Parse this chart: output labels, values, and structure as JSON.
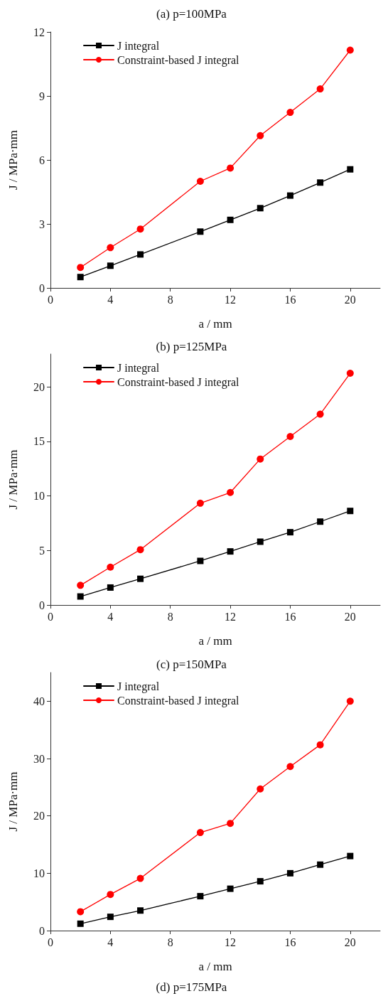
{
  "chart_data": [
    {
      "type": "line",
      "title": "(a) p=100MPa",
      "xlabel": "a / mm",
      "ylabel": "J / MPa·mm",
      "x": [
        2,
        4,
        6,
        10,
        12,
        14,
        16,
        18,
        20
      ],
      "xlim": [
        0,
        22
      ],
      "xticks": [
        0,
        4,
        8,
        12,
        16,
        20
      ],
      "ylim": [
        0,
        12
      ],
      "yticks": [
        0,
        3,
        6,
        9,
        12
      ],
      "grid": false,
      "legend": "top left",
      "series": [
        {
          "name": "J integral",
          "color": "#000000",
          "marker": "square",
          "values": [
            0.51,
            1.04,
            1.57,
            2.64,
            3.19,
            3.74,
            4.33,
            4.94,
            5.56
          ]
        },
        {
          "name": "Constraint-based J integral",
          "color": "#ff0000",
          "marker": "circle",
          "values": [
            0.96,
            1.89,
            2.76,
            5.0,
            5.62,
            7.14,
            8.23,
            9.33,
            11.15
          ]
        }
      ]
    },
    {
      "type": "line",
      "title": "(b) p=125MPa",
      "xlabel": "a / mm",
      "ylabel": "J / MPa·mm",
      "x": [
        2,
        4,
        6,
        10,
        12,
        14,
        16,
        18,
        20
      ],
      "xlim": [
        0,
        22
      ],
      "xticks": [
        0,
        4,
        8,
        12,
        16,
        20
      ],
      "ylim": [
        0,
        23
      ],
      "yticks": [
        0,
        5,
        10,
        15,
        20
      ],
      "grid": false,
      "legend": "top left",
      "series": [
        {
          "name": "J integral",
          "color": "#000000",
          "marker": "square",
          "values": [
            0.78,
            1.6,
            2.4,
            4.04,
            4.91,
            5.8,
            6.67,
            7.64,
            8.62
          ]
        },
        {
          "name": "Constraint-based J integral",
          "color": "#ff0000",
          "marker": "circle",
          "values": [
            1.8,
            3.47,
            5.07,
            9.33,
            10.31,
            13.38,
            15.44,
            17.49,
            21.24
          ]
        }
      ]
    },
    {
      "type": "line",
      "title": "(c) p=150MPa",
      "xlabel": "a / mm",
      "ylabel": "J / MPa·mm",
      "x": [
        2,
        4,
        6,
        10,
        12,
        14,
        16,
        18,
        20
      ],
      "xlim": [
        0,
        22
      ],
      "xticks": [
        0,
        4,
        8,
        12,
        16,
        20
      ],
      "ylim": [
        0,
        45
      ],
      "yticks": [
        0,
        10,
        20,
        30,
        40
      ],
      "grid": false,
      "legend": "top left",
      "annotations": [
        "(d) p=175MPa"
      ],
      "series": [
        {
          "name": "J integral",
          "color": "#000000",
          "marker": "square",
          "values": [
            1.2,
            2.4,
            3.5,
            6.0,
            7.3,
            8.6,
            10.0,
            11.5,
            13.0
          ]
        },
        {
          "name": "Constraint-based J integral",
          "color": "#ff0000",
          "marker": "circle",
          "values": [
            3.3,
            6.3,
            9.1,
            17.1,
            18.7,
            24.7,
            28.6,
            32.4,
            40.0
          ]
        }
      ]
    }
  ]
}
